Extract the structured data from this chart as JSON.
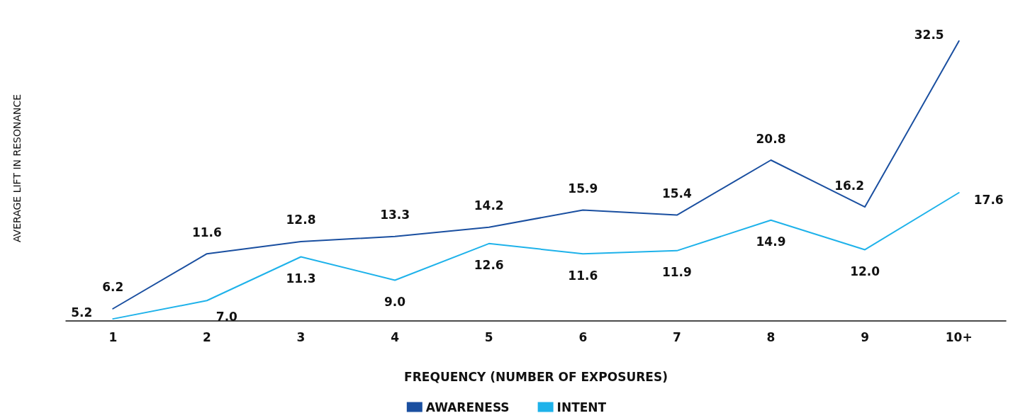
{
  "chart_data": {
    "type": "line",
    "xlabel": "FREQUENCY (NUMBER OF EXPOSURES)",
    "ylabel": "AVERAGE LIFT IN RESONANCE",
    "categories": [
      "1",
      "2",
      "3",
      "4",
      "5",
      "6",
      "7",
      "8",
      "9",
      "10+"
    ],
    "series": [
      {
        "name": "AWARENESS",
        "color": "#1a4fa0",
        "values": [
          6.2,
          11.6,
          12.8,
          13.3,
          14.2,
          15.9,
          15.4,
          20.8,
          16.2,
          32.5
        ],
        "value_labels": [
          "6.2",
          "11.6",
          "12.8",
          "13.3",
          "14.2",
          "15.9",
          "15.4",
          "20.8",
          "16.2",
          "32.5"
        ]
      },
      {
        "name": "INTENT",
        "color": "#1eb2ea",
        "values": [
          5.2,
          7.0,
          11.3,
          9.0,
          12.6,
          11.6,
          11.9,
          14.9,
          12.0,
          17.6
        ],
        "value_labels": [
          "5.2",
          "7.0",
          "11.3",
          "9.0",
          "12.6",
          "11.6",
          "11.9",
          "14.9",
          "12.0",
          "17.6"
        ]
      }
    ],
    "grid": false,
    "legend": "bottom",
    "marker": "none",
    "line_style": "solid"
  }
}
